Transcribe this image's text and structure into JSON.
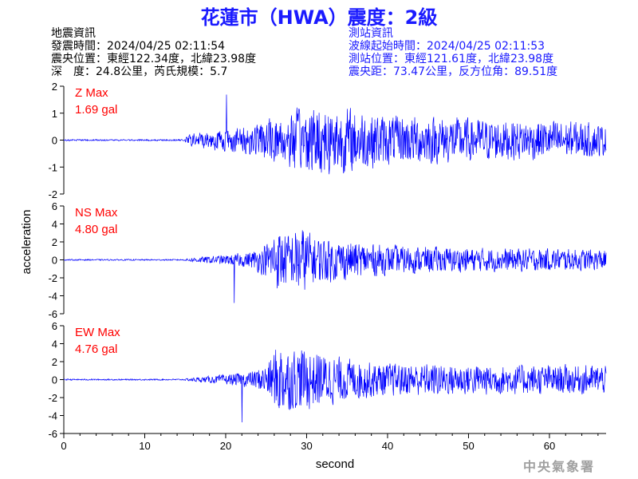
{
  "header": {
    "title": "花蓮市（HWA）震度：2級",
    "quake_info": [
      "地震資訊",
      "發震時間：2024/04/25 02:11:54",
      "震央位置：東經122.34度，北緯23.98度",
      "深　度：24.8公里，芮氏規模：5.7"
    ],
    "station_info": [
      "測站資訊",
      "波線起始時間：2024/04/25 02:11:53",
      "測站位置：東經121.61度，北緯23.98度",
      "震央距：73.47公里，反方位角：89.51度"
    ]
  },
  "credit": "中央氣象署",
  "colors": {
    "trace": "#0000ff",
    "max_label": "#ff0000",
    "title": "#1a1aff"
  },
  "chart_data": {
    "type": "line",
    "xlabel": "second",
    "ylabel": "acceleration",
    "xlim": [
      0,
      67
    ],
    "xticks": [
      0,
      10,
      20,
      30,
      40,
      50,
      60
    ],
    "onset_second": 15,
    "panels": [
      {
        "name": "Z",
        "max_label": "Z Max",
        "max_value": "1.69 gal",
        "peak": 1.69,
        "ylim": [
          -2,
          2
        ],
        "yticks": [
          2,
          1,
          0,
          -1,
          -2
        ],
        "envelope": [
          [
            0,
            0.03
          ],
          [
            14.8,
            0.03
          ],
          [
            15.5,
            0.25
          ],
          [
            18,
            0.4
          ],
          [
            22,
            0.55
          ],
          [
            25,
            0.8
          ],
          [
            28,
            1.2
          ],
          [
            32,
            1.5
          ],
          [
            36,
            1.3
          ],
          [
            40,
            1.0
          ],
          [
            45,
            1.0
          ],
          [
            50,
            0.9
          ],
          [
            55,
            0.8
          ],
          [
            60,
            0.8
          ],
          [
            66,
            0.7
          ],
          [
            67,
            0.6
          ]
        ]
      },
      {
        "name": "NS",
        "max_label": "NS Max",
        "max_value": "4.80 gal",
        "peak": 4.8,
        "ylim": [
          -6,
          6
        ],
        "yticks": [
          6,
          4,
          2,
          0,
          -2,
          -4,
          -6
        ],
        "envelope": [
          [
            0,
            0.08
          ],
          [
            14.8,
            0.08
          ],
          [
            16,
            0.3
          ],
          [
            20,
            0.6
          ],
          [
            23,
            1.0
          ],
          [
            25,
            2.0
          ],
          [
            26.5,
            4.0
          ],
          [
            28,
            3.0
          ],
          [
            29,
            4.5
          ],
          [
            31,
            3.0
          ],
          [
            34,
            2.5
          ],
          [
            40,
            1.8
          ],
          [
            45,
            1.6
          ],
          [
            50,
            1.5
          ],
          [
            55,
            1.4
          ],
          [
            60,
            1.4
          ],
          [
            67,
            1.3
          ]
        ]
      },
      {
        "name": "EW",
        "max_label": "EW Max",
        "max_value": "4.76 gal",
        "peak": 4.76,
        "ylim": [
          -6,
          6
        ],
        "yticks": [
          6,
          4,
          2,
          0,
          -2,
          -4,
          -6
        ],
        "envelope": [
          [
            0,
            0.08
          ],
          [
            14.8,
            0.08
          ],
          [
            16,
            0.25
          ],
          [
            20,
            0.6
          ],
          [
            23,
            1.0
          ],
          [
            25,
            1.8
          ],
          [
            26.5,
            4.6
          ],
          [
            28,
            3.8
          ],
          [
            29.5,
            4.0
          ],
          [
            31,
            3.5
          ],
          [
            34,
            2.8
          ],
          [
            40,
            2.0
          ],
          [
            45,
            2.0
          ],
          [
            50,
            1.9
          ],
          [
            55,
            1.8
          ],
          [
            60,
            1.8
          ],
          [
            67,
            1.8
          ]
        ]
      }
    ]
  }
}
